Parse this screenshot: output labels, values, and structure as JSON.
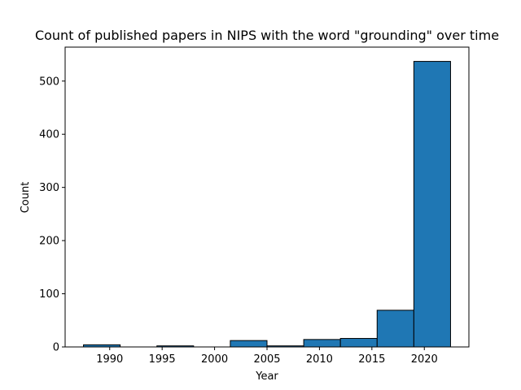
{
  "chart_data": {
    "type": "bar",
    "title": "Count of published papers in NIPS with the word \"grounding\" over time",
    "xlabel": "Year",
    "ylabel": "Count",
    "bins": [
      {
        "start": 1987.5,
        "end": 1991.0,
        "value": 4
      },
      {
        "start": 1991.0,
        "end": 1994.5,
        "value": 0
      },
      {
        "start": 1994.5,
        "end": 1998.0,
        "value": 2
      },
      {
        "start": 1998.0,
        "end": 2001.5,
        "value": 0
      },
      {
        "start": 2001.5,
        "end": 2005.0,
        "value": 12
      },
      {
        "start": 2005.0,
        "end": 2008.5,
        "value": 2
      },
      {
        "start": 2008.5,
        "end": 2012.0,
        "value": 14
      },
      {
        "start": 2012.0,
        "end": 2015.5,
        "value": 16
      },
      {
        "start": 2015.5,
        "end": 2019.0,
        "value": 69
      },
      {
        "start": 2019.0,
        "end": 2022.5,
        "value": 537
      }
    ],
    "xticks": [
      1990,
      1995,
      2000,
      2005,
      2010,
      2015,
      2020
    ],
    "yticks": [
      0,
      100,
      200,
      300,
      400,
      500
    ],
    "xlim": [
      1985.75,
      2024.25
    ],
    "ylim": [
      0,
      563.85
    ],
    "bar_color": "#1f77b4",
    "edge_color": "#000000",
    "grid": false
  }
}
